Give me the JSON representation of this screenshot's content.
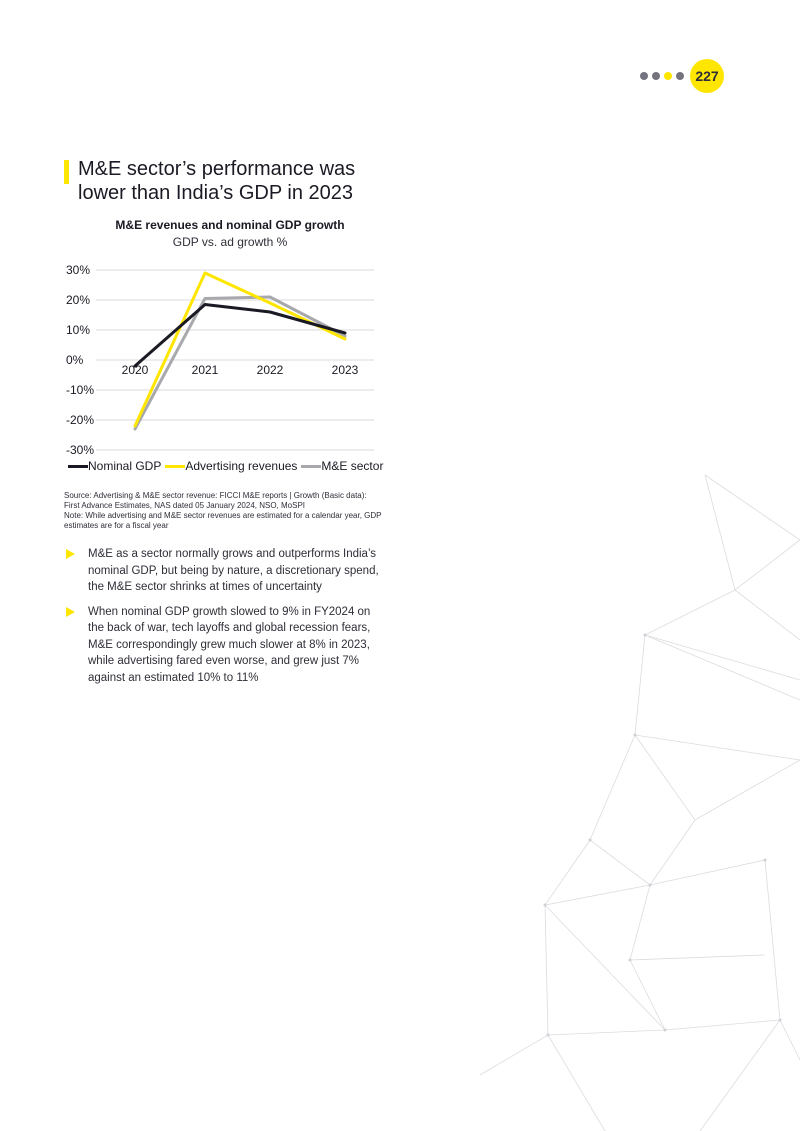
{
  "page": {
    "number": "227"
  },
  "header": {
    "title": "M&E sector’s performance was lower than India’s GDP in 2023"
  },
  "chart_data": {
    "type": "line",
    "title": "M&E revenues and nominal GDP growth",
    "subtitle": "GDP vs. ad growth %",
    "x": [
      "2020",
      "2021",
      "2022",
      "2023"
    ],
    "y_ticks": [
      "30%",
      "20%",
      "10%",
      "0%",
      "-10%",
      "-20%",
      "-30%"
    ],
    "ylim": [
      -30,
      30
    ],
    "grid": true,
    "legend_position": "bottom",
    "series": [
      {
        "name": "Nominal GDP",
        "color": "#1a1a24",
        "values": [
          -2,
          18.5,
          16,
          9
        ]
      },
      {
        "name": "Advertising revenues",
        "color": "#ffe600",
        "values": [
          -22,
          29,
          19,
          7
        ]
      },
      {
        "name": "M&E sector",
        "color": "#a7a9ac",
        "values": [
          -23,
          20.5,
          21,
          8
        ]
      }
    ]
  },
  "source": {
    "line1": "Source: Advertising & M&E sector revenue: FICCI M&E reports | Growth (Basic data): First Advance Estimates, NAS dated 05 January 2024, NSO, MoSPI",
    "line2": "Note: While advertising and M&E sector revenues are estimated for a calendar year, GDP estimates are for a fiscal year"
  },
  "bullets": [
    {
      "text": "M&E as a sector normally grows and outperforms India’s nominal GDP, but being by nature, a discretionary spend, the M&E sector shrinks at times of uncertainty"
    },
    {
      "text": "When nominal GDP growth slowed to 9% in FY2024 on the back of war, tech layoffs and global recession fears, M&E correspondingly grew much slower at 8% in 2023, while advertising fared even worse, and grew just 7% against an estimated 10% to 11%"
    }
  ],
  "colors": {
    "accent": "#ffe600",
    "dark": "#1a1a24",
    "grey": "#a7a9ac",
    "dots": "#747480"
  }
}
